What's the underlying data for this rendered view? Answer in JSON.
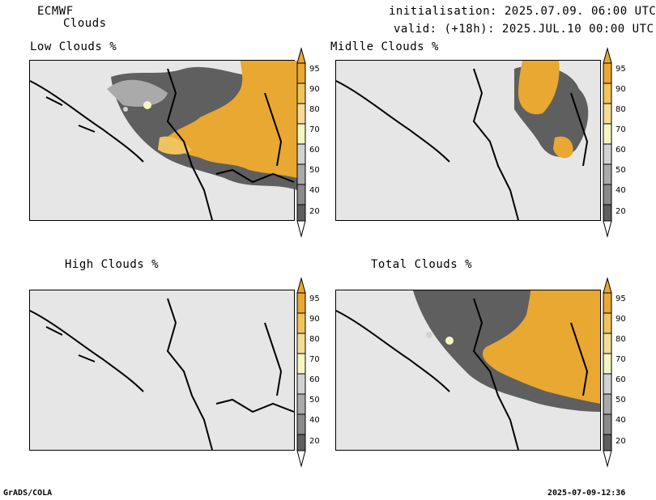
{
  "header": {
    "model": "ECMWF",
    "product": "Clouds",
    "init": "initialisation: 2025.07.09. 06:00 UTC",
    "valid": "valid: (+18h): 2025.JUL.10 00:00 UTC"
  },
  "panels": [
    {
      "title": "Low Clouds %"
    },
    {
      "title": "Midlle Clouds %"
    },
    {
      "title": "High Clouds %"
    },
    {
      "title": "Total Clouds %"
    }
  ],
  "colorbar": {
    "labels": [
      "95",
      "90",
      "80",
      "70",
      "60",
      "50",
      "40",
      "20"
    ],
    "colors": {
      "c95": "#e8a832",
      "c90": "#f0c45c",
      "c80": "#f4dc98",
      "c70": "#f6f6c4",
      "c60": "#d2d2d2",
      "c50": "#aaaaaa",
      "c40": "#8a8a8a",
      "c20": "#5f5f5f",
      "below": "#ffffff"
    }
  },
  "footer": {
    "left": "GrADS/COLA",
    "right": "2025-07-09-12:36"
  }
}
